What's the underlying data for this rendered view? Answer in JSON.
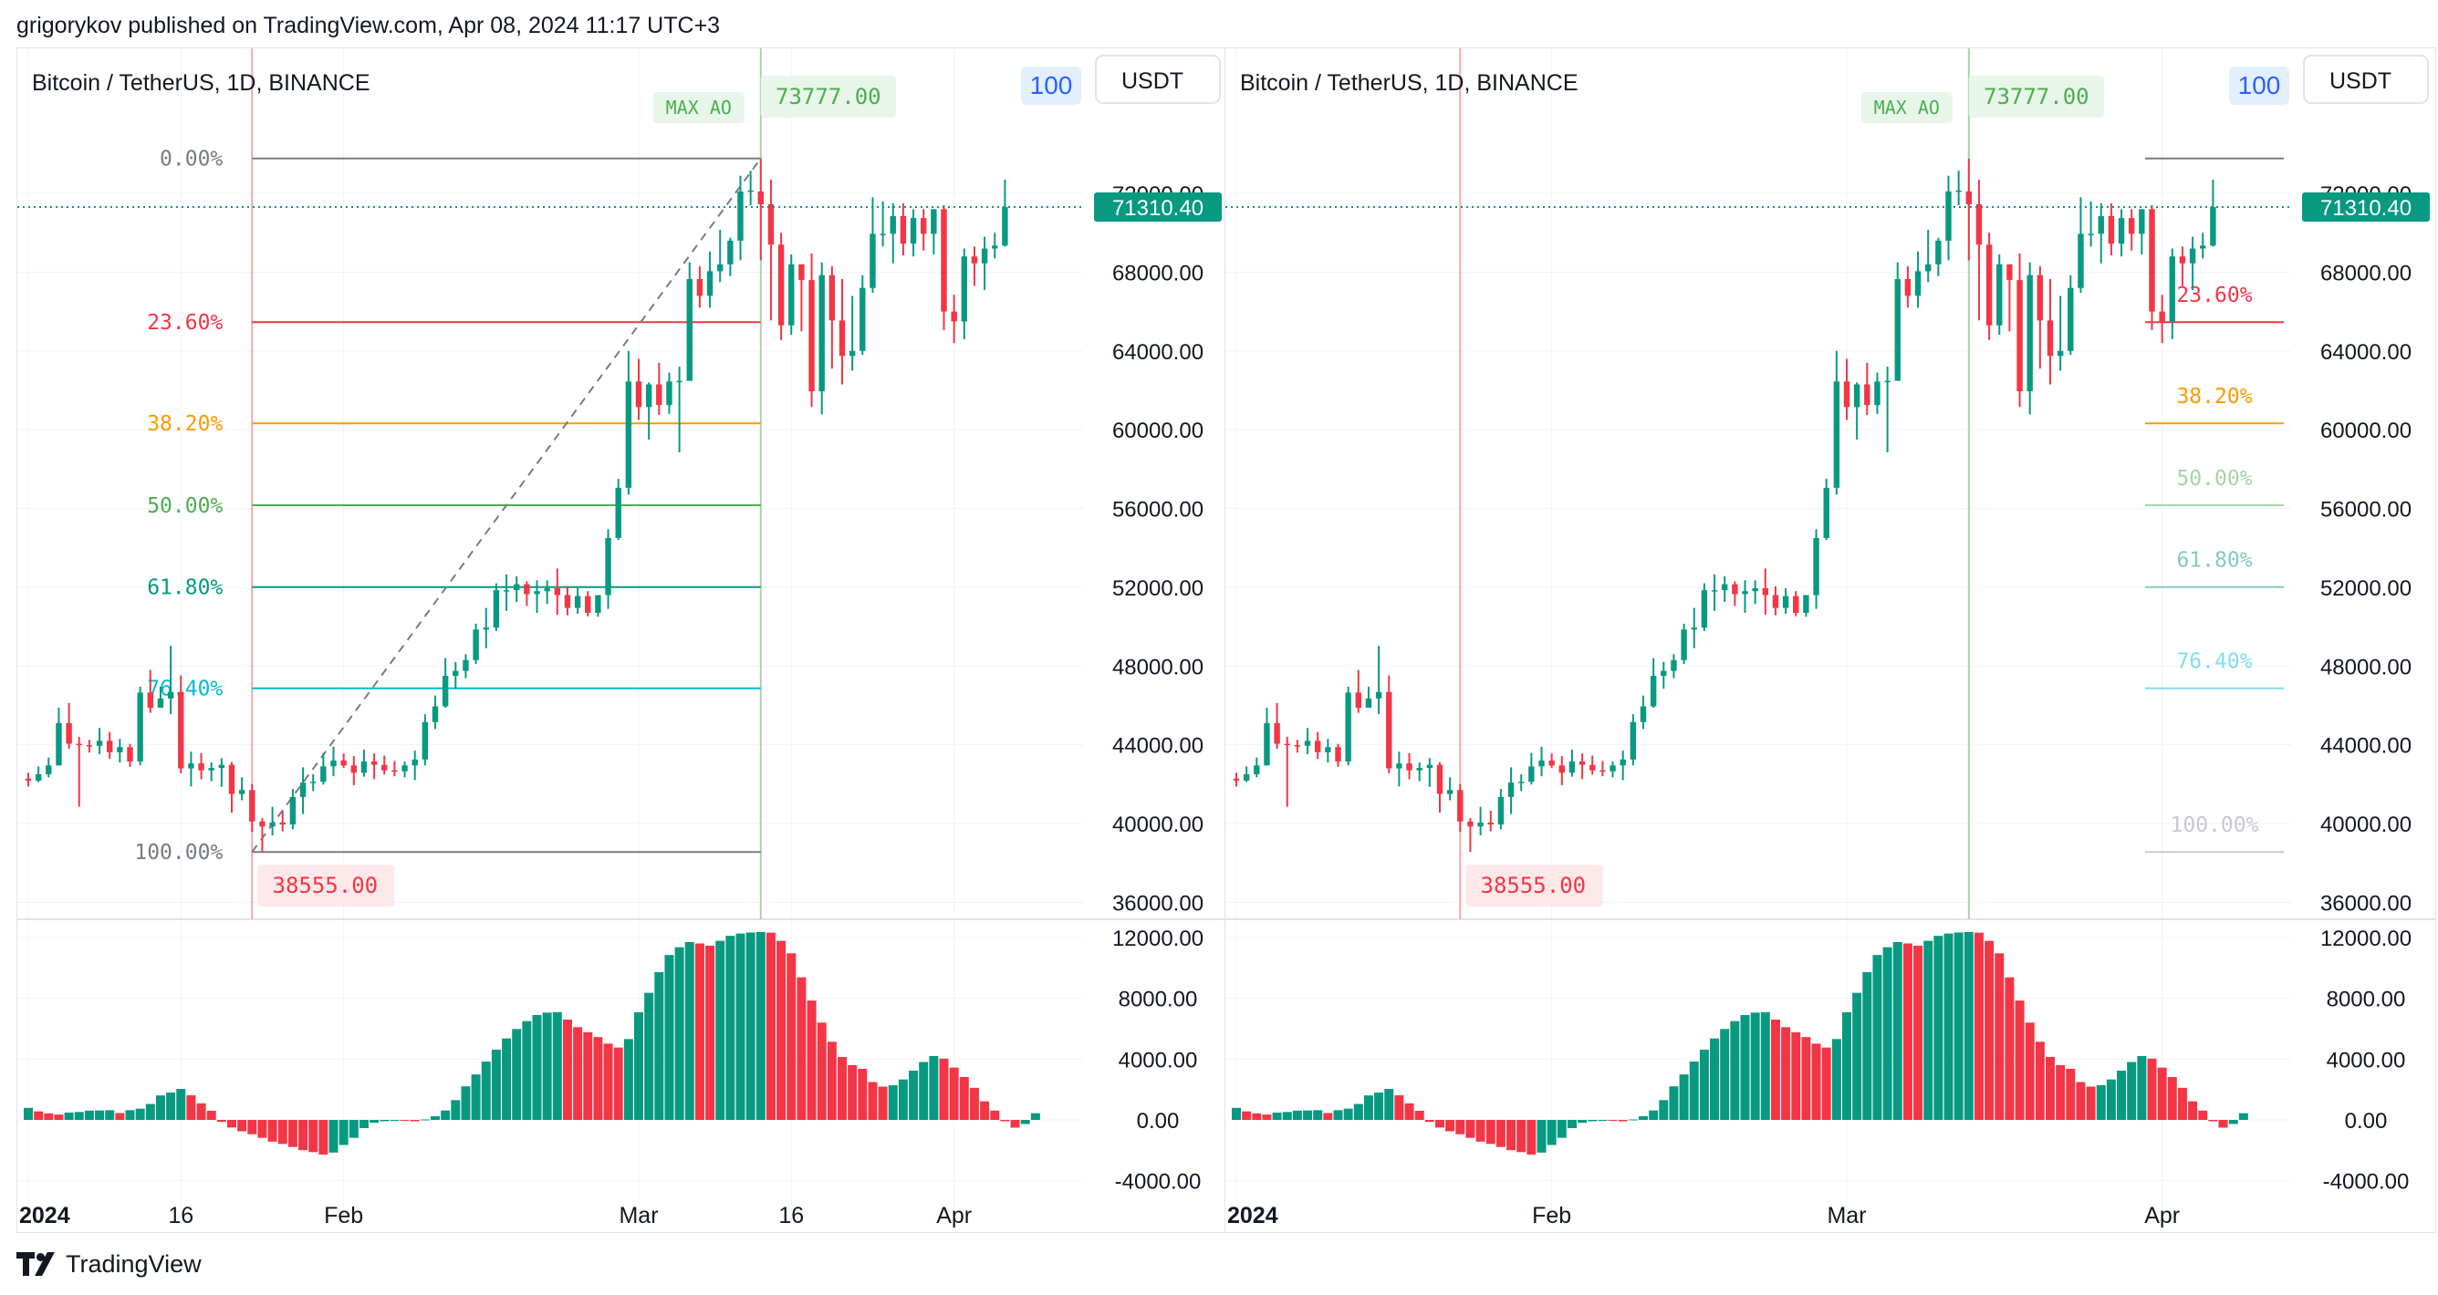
{
  "header": {
    "publish_line": "grigorykov published on TradingView.com, Apr 08, 2024 11:17 UTC+3"
  },
  "footer": {
    "logo_text": "TradingView"
  },
  "colors": {
    "up": "#089981",
    "down": "#f23645",
    "grid": "#f0f3fa",
    "fib_0": "#787b86",
    "fib_236": "#f23645",
    "fib_382": "#ff9800",
    "fib_50": "#4caf50",
    "fib_618": "#089981",
    "fib_764": "#00bcd4",
    "fib_100": "#787b86",
    "start_line": "#f7a5ab",
    "end_line": "#a5d6a7"
  },
  "chart_data": [
    {
      "type": "candlestick",
      "title": "Bitcoin / TetherUS, 1D, BINANCE",
      "currency": "USDT",
      "badge": "100",
      "last_price_label": "71310.40",
      "price_axis_ticks": [
        "72000.00",
        "68000.00",
        "64000.00",
        "60000.00",
        "56000.00",
        "52000.00",
        "48000.00",
        "44000.00",
        "40000.00",
        "36000.00"
      ],
      "ylim": [
        35600,
        75200
      ],
      "time_axis": [
        {
          "label": "2024",
          "bar": 0,
          "bold": true
        },
        {
          "label": "16",
          "bar": 15,
          "bold": false
        },
        {
          "label": "Feb",
          "bar": 31,
          "bold": false
        },
        {
          "label": "Mar",
          "bar": 60,
          "bold": false
        },
        {
          "label": "16",
          "bar": 75,
          "bold": false
        },
        {
          "label": "Apr",
          "bar": 91,
          "bold": false
        }
      ],
      "fib": {
        "start_bar": 22,
        "end_bar": 72,
        "low": 38555,
        "high": 73777,
        "levels": [
          {
            "ratio": 0,
            "label": "0.00%",
            "color": "#787b86"
          },
          {
            "ratio": 0.236,
            "label": "23.60%",
            "color": "#f23645"
          },
          {
            "ratio": 0.382,
            "label": "38.20%",
            "color": "#ff9800"
          },
          {
            "ratio": 0.5,
            "label": "50.00%",
            "color": "#4caf50"
          },
          {
            "ratio": 0.618,
            "label": "61.80%",
            "color": "#089981"
          },
          {
            "ratio": 0.764,
            "label": "76.40%",
            "color": "#00bcd4"
          },
          {
            "ratio": 1,
            "label": "100.00%",
            "color": "#787b86"
          }
        ],
        "high_label": "73777.00",
        "low_label": "38555.00",
        "max_ao_label": "MAX AO"
      },
      "ao_axis_ticks": [
        "12000.00",
        "8000.00",
        "4000.00",
        "0.00",
        "-4000.00"
      ],
      "ao_ylim": [
        -4500,
        13200
      ]
    },
    {
      "type": "candlestick",
      "title": "Bitcoin / TetherUS, 1D, BINANCE",
      "currency": "USDT",
      "badge": "100",
      "last_price_label": "71310.40",
      "price_axis_ticks": [
        "72000.00",
        "68000.00",
        "64000.00",
        "60000.00",
        "56000.00",
        "52000.00",
        "48000.00",
        "44000.00",
        "40000.00",
        "36000.00"
      ],
      "ylim": [
        35600,
        75200
      ],
      "time_axis": [
        {
          "label": "2024",
          "bar": 0,
          "bold": true
        },
        {
          "label": "Feb",
          "bar": 31,
          "bold": false
        },
        {
          "label": "Mar",
          "bar": 60,
          "bold": false
        },
        {
          "label": "Apr",
          "bar": 91,
          "bold": false
        }
      ],
      "fib": {
        "start_bar": 22,
        "end_bar": 72,
        "low": 38555,
        "high": 73777,
        "levels": [
          {
            "ratio": 0,
            "label": "",
            "color": "#787b86"
          },
          {
            "ratio": 0.236,
            "label": "23.60%",
            "color": "#f23645"
          },
          {
            "ratio": 0.382,
            "label": "38.20%",
            "color": "#ff9800"
          },
          {
            "ratio": 0.5,
            "label": "50.00%",
            "color": "#a5d6a7"
          },
          {
            "ratio": 0.618,
            "label": "61.80%",
            "color": "#80cbc4"
          },
          {
            "ratio": 0.764,
            "label": "76.40%",
            "color": "#80deea"
          },
          {
            "ratio": 1,
            "label": "100.00%",
            "color": "#c7c9d1"
          }
        ],
        "high_label": "73777.00",
        "low_label": "38555.00",
        "max_ao_label": "MAX AO"
      },
      "ao_axis_ticks": [
        "12000.00",
        "8000.00",
        "4000.00",
        "0.00",
        "-4000.00"
      ],
      "ao_ylim": [
        -4500,
        13200
      ]
    }
  ],
  "series": {
    "candles_ohlc": [
      [
        42280,
        42580,
        41880,
        42180
      ],
      [
        42180,
        42900,
        42100,
        42500
      ],
      [
        42500,
        43350,
        42350,
        42950
      ],
      [
        42950,
        45880,
        42950,
        45100
      ],
      [
        45100,
        46120,
        43800,
        44050
      ],
      [
        44050,
        44400,
        40850,
        43980
      ],
      [
        43980,
        44250,
        43600,
        43950
      ],
      [
        43950,
        44850,
        43520,
        44200
      ],
      [
        44200,
        44650,
        43280,
        43620
      ],
      [
        43620,
        44300,
        43100,
        43880
      ],
      [
        43880,
        44050,
        42880,
        43150
      ],
      [
        43150,
        46950,
        42960,
        46650
      ],
      [
        46650,
        47800,
        45620,
        45880
      ],
      [
        45880,
        46950,
        45900,
        46350
      ],
      [
        46350,
        49020,
        45560,
        46680
      ],
      [
        46680,
        47520,
        42550,
        42800
      ],
      [
        42800,
        43650,
        41880,
        43050
      ],
      [
        43050,
        43580,
        42250,
        42700
      ],
      [
        42700,
        43100,
        42150,
        42820
      ],
      [
        42820,
        43320,
        41860,
        42980
      ],
      [
        42980,
        43120,
        40550,
        41500
      ],
      [
        41500,
        42350,
        41180,
        41700
      ],
      [
        41700,
        42000,
        39580,
        40100
      ],
      [
        40100,
        40280,
        38555,
        39850
      ],
      [
        39850,
        40850,
        39400,
        40050
      ],
      [
        40050,
        40650,
        39600,
        39950
      ],
      [
        39950,
        41750,
        39700,
        41350
      ],
      [
        41350,
        42850,
        40480,
        42080
      ],
      [
        42080,
        42500,
        41650,
        42120
      ],
      [
        42120,
        43580,
        41980,
        42900
      ],
      [
        42900,
        43900,
        42400,
        43200
      ],
      [
        43200,
        43560,
        42820,
        42950
      ],
      [
        42950,
        43420,
        41950,
        42580
      ],
      [
        42580,
        43750,
        42380,
        43150
      ],
      [
        43150,
        43560,
        42250,
        42980
      ],
      [
        42980,
        43450,
        42480,
        42700
      ],
      [
        42700,
        43180,
        42400,
        42650
      ],
      [
        42650,
        43150,
        42350,
        42950
      ],
      [
        42950,
        43700,
        42200,
        43250
      ],
      [
        43250,
        45550,
        42950,
        45150
      ],
      [
        45150,
        46500,
        44800,
        45950
      ],
      [
        45950,
        48400,
        45880,
        47500
      ],
      [
        47500,
        48200,
        46850,
        47750
      ],
      [
        47750,
        48600,
        47380,
        48300
      ],
      [
        48300,
        50150,
        48100,
        49850
      ],
      [
        49850,
        50950,
        48900,
        49950
      ],
      [
        49950,
        52200,
        49780,
        51850
      ],
      [
        51850,
        52650,
        50800,
        51850
      ],
      [
        51850,
        52550,
        51250,
        52150
      ],
      [
        52150,
        52300,
        51050,
        51650
      ],
      [
        51650,
        52350,
        50700,
        51800
      ],
      [
        51800,
        52350,
        51150,
        51950
      ],
      [
        51950,
        52950,
        50600,
        51600
      ],
      [
        51600,
        52050,
        50580,
        50950
      ],
      [
        50950,
        51950,
        50650,
        51550
      ],
      [
        51550,
        51800,
        50520,
        50700
      ],
      [
        50700,
        51550,
        50500,
        51600
      ],
      [
        51600,
        54950,
        50900,
        54500
      ],
      [
        54500,
        57500,
        54400,
        57050
      ],
      [
        57050,
        64000,
        56700,
        62450
      ],
      [
        62450,
        63600,
        60500,
        61150
      ],
      [
        61150,
        62400,
        59500,
        62300
      ],
      [
        62300,
        63400,
        60750,
        61250
      ],
      [
        61250,
        62900,
        60800,
        62450
      ],
      [
        62450,
        63200,
        58850,
        62480
      ],
      [
        62480,
        68500,
        62500,
        67650
      ],
      [
        67650,
        68300,
        66200,
        66800
      ],
      [
        66800,
        69050,
        66200,
        68050
      ],
      [
        68050,
        70150,
        67500,
        68400
      ],
      [
        68400,
        69750,
        67800,
        69600
      ],
      [
        69600,
        72900,
        68600,
        72100
      ],
      [
        72100,
        73150,
        71400,
        72150
      ],
      [
        72100,
        73777,
        68600,
        71450
      ],
      [
        71450,
        72700,
        65550,
        69400
      ],
      [
        69400,
        70000,
        64550,
        65300
      ],
      [
        65300,
        68900,
        64820,
        68400
      ],
      [
        68400,
        68200,
        65000,
        67600
      ],
      [
        67600,
        68950,
        61150,
        61950
      ],
      [
        61950,
        68500,
        60780,
        67850
      ],
      [
        67850,
        68300,
        63100,
        65550
      ],
      [
        65550,
        67650,
        62300,
        63750
      ],
      [
        63750,
        66800,
        63000,
        64000
      ],
      [
        64000,
        67850,
        63800,
        67200
      ],
      [
        67200,
        71800,
        66950,
        69950
      ],
      [
        69950,
        71600,
        69300,
        69950
      ],
      [
        69950,
        71500,
        68450,
        70850
      ],
      [
        70850,
        71500,
        68850,
        69450
      ],
      [
        69450,
        71200,
        68800,
        70750
      ],
      [
        70750,
        71200,
        69100,
        69950
      ],
      [
        69950,
        71200,
        68900,
        71200
      ],
      [
        71200,
        71400,
        65050,
        66000
      ],
      [
        66000,
        66850,
        64400,
        65500
      ],
      [
        65500,
        69200,
        64600,
        68800
      ],
      [
        68800,
        69300,
        67300,
        68450
      ],
      [
        68450,
        69800,
        67100,
        69200
      ],
      [
        69200,
        70000,
        68700,
        69350
      ],
      [
        69350,
        72700,
        69300,
        71310
      ]
    ],
    "ao": [
      790,
      560,
      430,
      350,
      480,
      520,
      610,
      620,
      640,
      450,
      640,
      740,
      1050,
      1610,
      1800,
      2040,
      1620,
      1090,
      600,
      -130,
      -500,
      -750,
      -940,
      -1180,
      -1430,
      -1580,
      -1780,
      -1990,
      -2120,
      -2280,
      -2150,
      -1650,
      -1180,
      -540,
      -190,
      -90,
      -40,
      -60,
      -90,
      30,
      240,
      620,
      1300,
      2210,
      2990,
      3840,
      4620,
      5360,
      5980,
      6500,
      6900,
      7060,
      7090,
      6600,
      6100,
      5770,
      5450,
      5020,
      4760,
      5320,
      7080,
      8360,
      9720,
      10850,
      11360,
      11700,
      11610,
      11460,
      11780,
      12110,
      12260,
      12330,
      12360,
      12320,
      11780,
      10960,
      9380,
      7850,
      6400,
      5140,
      4140,
      3600,
      3360,
      2490,
      2190,
      2280,
      2660,
      3240,
      3810,
      4200,
      4030,
      3440,
      2820,
      2110,
      1220,
      610,
      -90,
      -510,
      -270,
      440
    ]
  }
}
